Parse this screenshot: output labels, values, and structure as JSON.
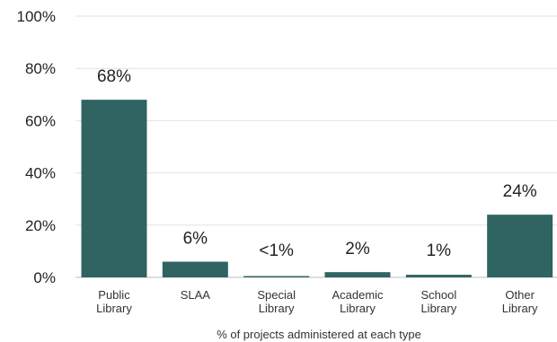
{
  "chart_data": {
    "type": "bar",
    "categories": [
      [
        "Public",
        "Library"
      ],
      [
        "SLAA"
      ],
      [
        "Special",
        "Library"
      ],
      [
        "Academic",
        "Library"
      ],
      [
        "School",
        "Library"
      ],
      [
        "Other",
        "Library"
      ]
    ],
    "values": [
      68,
      6,
      0.5,
      2,
      1,
      24
    ],
    "data_labels": [
      "68%",
      "6%",
      "<1%",
      "2%",
      "1%",
      "24%"
    ],
    "yticks": [
      "0%",
      "20%",
      "40%",
      "60%",
      "80%",
      "100%"
    ],
    "ylim": [
      0,
      100
    ],
    "xlabel": "% of projects administered at each type",
    "grid": true,
    "bar_color": "#2f6463",
    "grid_color": "#e3e3e3",
    "axis_color": "#bdbdbd"
  }
}
